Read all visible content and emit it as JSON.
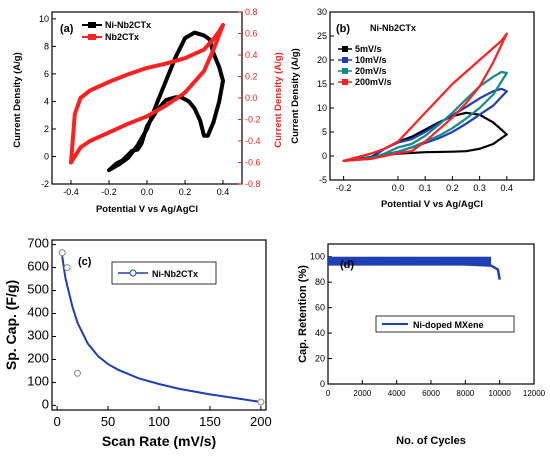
{
  "colors": {
    "black": "#000000",
    "red": "#ff2020",
    "blue": "#1f3fb4",
    "teal": "#138a8a",
    "purple": "#6a1b9a"
  },
  "chart_data": [
    {
      "type": "line",
      "panel": "(a)",
      "xlabel": "Potential V vs Ag/AgCl",
      "ylabel": "Current Density (A/g)",
      "ylabel_right": "Current Density (A/g)",
      "xticks": [
        "-0.4",
        "-0.2",
        "0.0",
        "0.2",
        "0.4"
      ],
      "xlim": [
        -0.5,
        0.5
      ],
      "yticks_left": [
        "-2",
        "0",
        "2",
        "4",
        "6",
        "8",
        "10"
      ],
      "ylim_left": [
        -2,
        10.5
      ],
      "yticks_right": [
        "-0.8",
        "-0.6",
        "-0.4",
        "-0.2",
        "0.0",
        "0.2",
        "0.4",
        "0.6",
        "0.8"
      ],
      "ylim_right": [
        -0.8,
        0.8
      ],
      "legend": [
        "Ni-Nb2CTx",
        "Nb2CTx"
      ],
      "legend_position": "top-left",
      "series": [
        {
          "name": "Ni-Nb2CTx",
          "axis": "left",
          "color": "#000000",
          "x": [
            -0.2,
            -0.15,
            -0.1,
            -0.05,
            0.0,
            0.05,
            0.1,
            0.15,
            0.2,
            0.25,
            0.3,
            0.33,
            0.35,
            0.38,
            0.4,
            0.38,
            0.35,
            0.32,
            0.3,
            0.28,
            0.25,
            0.22,
            0.18,
            0.15,
            0.1,
            0.05,
            0.0,
            -0.03,
            -0.05,
            -0.08,
            -0.1,
            -0.13,
            -0.16,
            -0.2
          ],
          "y": [
            -1.0,
            -0.6,
            -0.1,
            0.8,
            2.0,
            3.8,
            5.5,
            7.2,
            8.6,
            9.0,
            8.8,
            8.5,
            7.5,
            6.5,
            5.5,
            4.0,
            2.5,
            1.5,
            1.5,
            2.6,
            3.5,
            4.0,
            4.3,
            4.3,
            4.1,
            3.3,
            2.2,
            0.9,
            0.5,
            0.4,
            0.1,
            -0.3,
            -0.5,
            -1.0
          ]
        },
        {
          "name": "Nb2CTx",
          "axis": "right",
          "color": "#ff2020",
          "x": [
            -0.4,
            -0.35,
            -0.3,
            -0.2,
            -0.1,
            0.0,
            0.1,
            0.2,
            0.3,
            0.35,
            0.4,
            0.38,
            0.35,
            0.3,
            0.2,
            0.1,
            0.0,
            -0.1,
            -0.2,
            -0.3,
            -0.35,
            -0.38,
            -0.4
          ],
          "y": [
            -0.6,
            -0.46,
            -0.4,
            -0.32,
            -0.24,
            -0.17,
            -0.07,
            0.05,
            0.25,
            0.45,
            0.68,
            0.62,
            0.55,
            0.45,
            0.37,
            0.32,
            0.28,
            0.22,
            0.15,
            0.07,
            0.0,
            -0.15,
            -0.6
          ]
        }
      ]
    },
    {
      "type": "line",
      "panel": "(b)",
      "title": "Ni-Nb2CTx",
      "xlabel": "Potential V vs Ag/AgCl",
      "ylabel": "Current Density (A/g)",
      "xticks": [
        "-0.2",
        "0.0",
        "0.1",
        "0.2",
        "0.3",
        "0.4"
      ],
      "xlim": [
        -0.25,
        0.5
      ],
      "yticks": [
        "-5",
        "0",
        "5",
        "10",
        "15",
        "20",
        "25",
        "30"
      ],
      "ylim": [
        -5,
        30
      ],
      "legend": [
        "5mV/s",
        "10mV/s",
        "20mV/s",
        "200mV/s"
      ],
      "legend_position": "top-left",
      "series": [
        {
          "name": "5mV/s",
          "color": "#000000",
          "x": [
            -0.2,
            -0.1,
            -0.05,
            0.0,
            0.05,
            0.1,
            0.15,
            0.2,
            0.25,
            0.3,
            0.35,
            0.4,
            0.35,
            0.3,
            0.25,
            0.2,
            0.1,
            0.0,
            -0.05,
            -0.1,
            -0.2
          ],
          "y": [
            -1.0,
            -0.3,
            1.5,
            3.0,
            4.0,
            5.5,
            7.0,
            8.3,
            9.0,
            8.6,
            7.0,
            4.5,
            2.5,
            1.5,
            1.0,
            0.9,
            0.8,
            0.5,
            0.2,
            -0.2,
            -1.0
          ]
        },
        {
          "name": "10mV/s",
          "color": "#1f3fb4",
          "x": [
            -0.2,
            -0.1,
            -0.05,
            0.0,
            0.05,
            0.1,
            0.15,
            0.2,
            0.25,
            0.3,
            0.35,
            0.38,
            0.4,
            0.35,
            0.3,
            0.25,
            0.2,
            0.15,
            0.1,
            0.05,
            0.0,
            -0.1,
            -0.2
          ],
          "y": [
            -1.0,
            -0.5,
            1.5,
            2.8,
            3.5,
            5.0,
            6.8,
            8.5,
            10.2,
            12.0,
            13.5,
            14.0,
            13.5,
            10.5,
            8.6,
            6.7,
            5.0,
            3.7,
            2.7,
            1.8,
            0.9,
            -0.3,
            -1.0
          ]
        },
        {
          "name": "20mV/s",
          "color": "#138a8a",
          "x": [
            -0.2,
            -0.1,
            -0.05,
            0.0,
            0.05,
            0.1,
            0.15,
            0.2,
            0.25,
            0.3,
            0.35,
            0.38,
            0.4,
            0.35,
            0.3,
            0.25,
            0.2,
            0.15,
            0.1,
            0.05,
            0.0,
            -0.1,
            -0.2
          ],
          "y": [
            -1.0,
            -0.6,
            0.5,
            1.8,
            2.5,
            4.2,
            6.5,
            9.0,
            11.8,
            14.5,
            16.5,
            17.5,
            17.3,
            12.8,
            10.0,
            7.8,
            5.8,
            4.2,
            3.0,
            1.8,
            0.8,
            -0.4,
            -1.0
          ]
        },
        {
          "name": "200mV/s",
          "color": "#ff2020",
          "x": [
            -0.2,
            -0.1,
            -0.05,
            0.0,
            0.05,
            0.1,
            0.15,
            0.2,
            0.25,
            0.3,
            0.35,
            0.4,
            0.38,
            0.35,
            0.3,
            0.25,
            0.2,
            0.15,
            0.1,
            0.05,
            0.0,
            -0.05,
            -0.1,
            -0.2
          ],
          "y": [
            -1.0,
            -0.6,
            0.0,
            0.6,
            1.0,
            3.0,
            5.5,
            8.0,
            11.0,
            14.5,
            19.5,
            25.5,
            24.0,
            22.5,
            20.0,
            17.5,
            15.0,
            12.0,
            9.0,
            6.0,
            3.0,
            1.5,
            0.5,
            -1.0
          ]
        }
      ]
    },
    {
      "type": "line",
      "panel": "(c)",
      "xlabel": "Scan Rate (mV/s)",
      "ylabel": "Sp. Cap. (F/g)",
      "xticks": [
        "0",
        "50",
        "100",
        "150",
        "200"
      ],
      "xlim": [
        -5,
        205
      ],
      "yticks": [
        "0",
        "100",
        "200",
        "300",
        "400",
        "500",
        "600",
        "700"
      ],
      "ylim": [
        -20,
        720
      ],
      "legend": [
        "Ni-Nb2CTx"
      ],
      "legend_position": "top-right",
      "series": [
        {
          "name": "Ni-Nb2CTx",
          "color": "#1f3fb4",
          "points": {
            "x": [
              5,
              10,
              20,
              200
            ],
            "y": [
              665,
              600,
              140,
              15
            ]
          }
        }
      ],
      "fit_curve": {
        "x": [
          5,
          8,
          10,
          15,
          20,
          30,
          40,
          50,
          60,
          80,
          100,
          120,
          150,
          175,
          200
        ],
        "y": [
          650,
          560,
          520,
          430,
          360,
          270,
          215,
          180,
          155,
          118,
          93,
          72,
          48,
          32,
          15
        ]
      }
    },
    {
      "type": "line",
      "panel": "(d)",
      "xlabel": "No. of Cycles",
      "ylabel": "Cap. Retention (%)",
      "xticks": [
        "0",
        "2000",
        "4000",
        "6000",
        "8000",
        "10000",
        "12000"
      ],
      "xlim": [
        0,
        12000
      ],
      "yticks": [
        "0",
        "20",
        "40",
        "60",
        "80",
        "100"
      ],
      "ylim": [
        0,
        110
      ],
      "legend": [
        "Ni-doped MXene"
      ],
      "legend_position": "bottom-right",
      "series": [
        {
          "name": "Ni-doped MXene",
          "color": "#1f3fb4",
          "x": [
            0,
            2000,
            4000,
            6000,
            8000,
            9500,
            9900,
            10000
          ],
          "y": [
            97,
            97,
            96,
            95,
            94,
            93,
            90,
            82
          ],
          "band_low": 93,
          "band_high": 100
        }
      ]
    }
  ]
}
